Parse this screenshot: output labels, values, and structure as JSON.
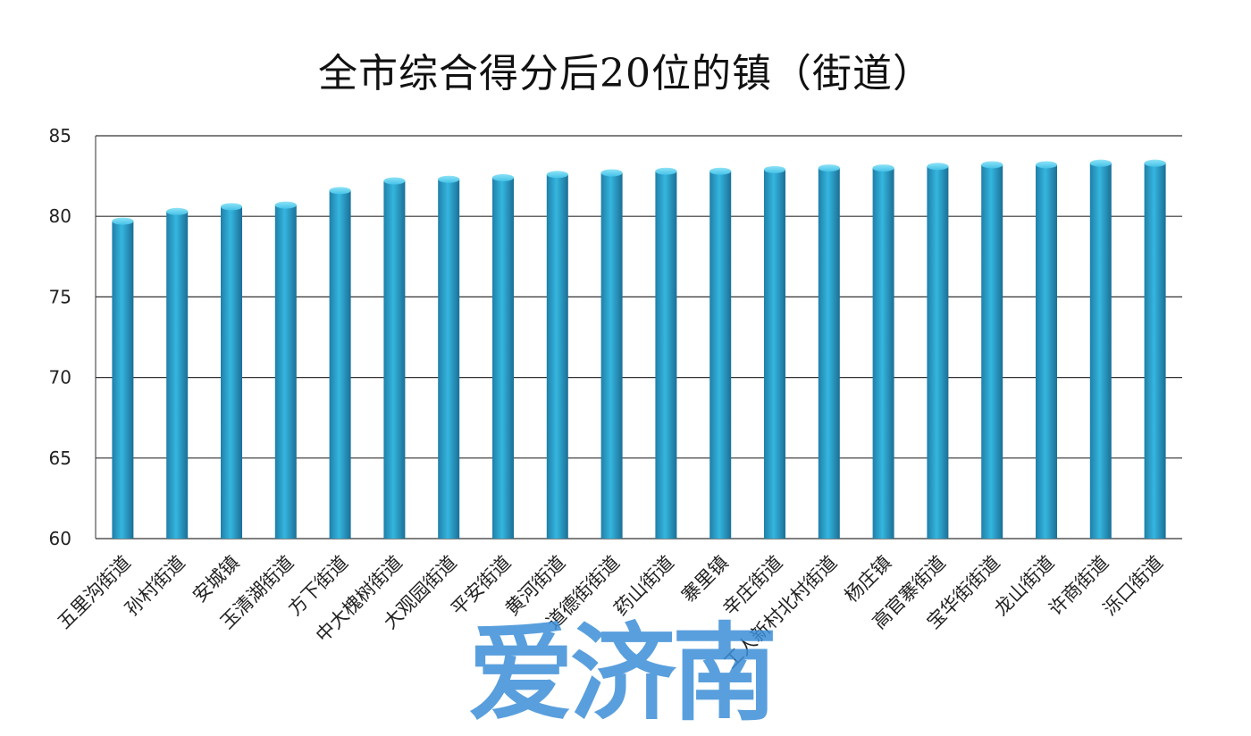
{
  "chart_data": {
    "type": "bar",
    "title": "全市综合得分后20位的镇（街道）",
    "xlabel": "",
    "ylabel": "",
    "ylim": [
      60,
      85
    ],
    "yticks": [
      60,
      65,
      70,
      75,
      80,
      85
    ],
    "grid": true,
    "categories": [
      "五里沟街道",
      "孙村街道",
      "安城镇",
      "玉清湖街道",
      "方下街道",
      "中大槐树街道",
      "大观园街道",
      "平安街道",
      "黄河街道",
      "道德街街道",
      "药山街道",
      "寨里镇",
      "辛庄街道",
      "工人新村北村街道",
      "杨庄镇",
      "高官寨街道",
      "宝华街街道",
      "龙山街道",
      "许商街道",
      "泺口街道"
    ],
    "values": [
      79.7,
      80.3,
      80.6,
      80.7,
      81.6,
      82.2,
      82.3,
      82.4,
      82.6,
      82.7,
      82.8,
      82.8,
      82.9,
      83.0,
      83.0,
      83.1,
      83.2,
      83.2,
      83.3,
      83.3
    ],
    "bar_color": "#2aa3cf"
  },
  "watermark": "爱济南"
}
